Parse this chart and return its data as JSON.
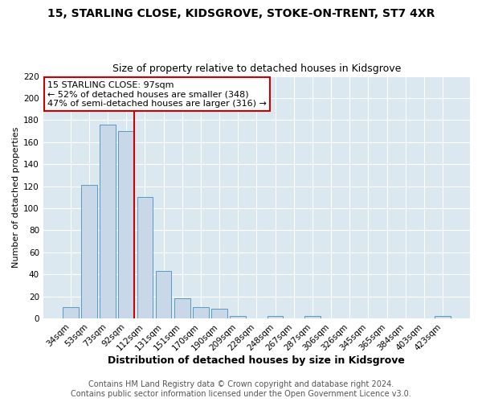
{
  "title": "15, STARLING CLOSE, KIDSGROVE, STOKE-ON-TRENT, ST7 4XR",
  "subtitle": "Size of property relative to detached houses in Kidsgrove",
  "xlabel": "Distribution of detached houses by size in Kidsgrove",
  "ylabel": "Number of detached properties",
  "bar_labels": [
    "34sqm",
    "53sqm",
    "73sqm",
    "92sqm",
    "112sqm",
    "131sqm",
    "151sqm",
    "170sqm",
    "190sqm",
    "209sqm",
    "228sqm",
    "248sqm",
    "267sqm",
    "287sqm",
    "306sqm",
    "326sqm",
    "345sqm",
    "365sqm",
    "384sqm",
    "403sqm",
    "423sqm"
  ],
  "bar_values": [
    10,
    121,
    176,
    170,
    110,
    43,
    18,
    10,
    9,
    2,
    0,
    2,
    0,
    2,
    0,
    0,
    0,
    0,
    0,
    0,
    2
  ],
  "bar_color": "#c8d8e8",
  "bar_edgecolor": "#5a9abf",
  "vline_color": "#cc0000",
  "vline_position": 3.425,
  "ylim": [
    0,
    220
  ],
  "yticks": [
    0,
    20,
    40,
    60,
    80,
    100,
    120,
    140,
    160,
    180,
    200,
    220
  ],
  "annotation_title": "15 STARLING CLOSE: 97sqm",
  "annotation_line1": "← 52% of detached houses are smaller (348)",
  "annotation_line2": "47% of semi-detached houses are larger (316) →",
  "annotation_box_facecolor": "#ffffff",
  "annotation_box_edgecolor": "#cc0000",
  "footer_line1": "Contains HM Land Registry data © Crown copyright and database right 2024.",
  "footer_line2": "Contains public sector information licensed under the Open Government Licence v3.0.",
  "fig_facecolor": "#ffffff",
  "plot_bg_color": "#dce8f0",
  "title_fontsize": 10,
  "subtitle_fontsize": 9,
  "tick_fontsize": 7.5,
  "xlabel_fontsize": 9,
  "ylabel_fontsize": 8,
  "footer_fontsize": 7,
  "annotation_fontsize": 8
}
